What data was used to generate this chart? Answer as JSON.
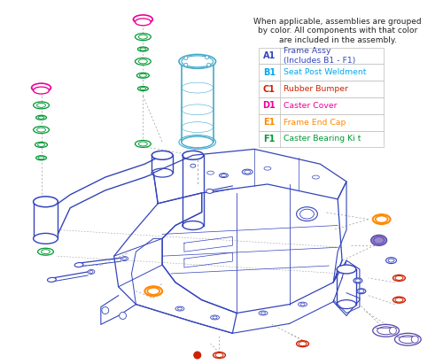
{
  "bg_color": "#ffffff",
  "legend_note": "When applicable, assemblies are grouped\nby color. All components with that color\nare included in the assembly.",
  "legend_items": [
    {
      "code": "A1",
      "desc": "Frame Assy\n(Includes B1 - F1)",
      "color": "#3344bb"
    },
    {
      "code": "B1",
      "desc": "Seat Post Weldment",
      "color": "#00aaee"
    },
    {
      "code": "C1",
      "desc": "Rubber Bumper",
      "color": "#cc2200"
    },
    {
      "code": "D1",
      "desc": "Caster Cover",
      "color": "#ee0099"
    },
    {
      "code": "E1",
      "desc": "Frame End Cap",
      "color": "#ff8800"
    },
    {
      "code": "F1",
      "desc": "Caster Bearing Ki t",
      "color": "#009933"
    }
  ],
  "note_fontsize": 6.5,
  "legend_fontsize": 7.0,
  "frame_color": "#3344bb",
  "cyan_color": "#44aacc",
  "green_color": "#009933",
  "pink_color": "#ee0099",
  "orange_color": "#ff8800",
  "red_color": "#cc2200",
  "purple_color": "#5544aa",
  "gray_color": "#999999"
}
